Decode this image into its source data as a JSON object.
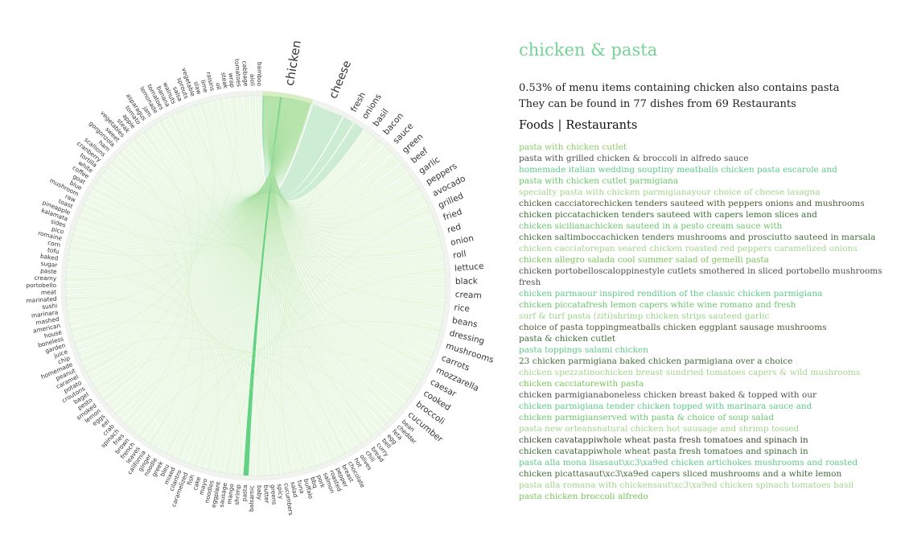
{
  "chart_data": {
    "type": "chord",
    "groups": [
      "chicken",
      "cheese",
      "fresh",
      "onions",
      "basil",
      "bacon",
      "sauce",
      "green",
      "beef",
      "garlic",
      "peppers",
      "avocado",
      "grilled",
      "fried",
      "red",
      "onion",
      "roll",
      "lettuce",
      "black",
      "cream",
      "rice",
      "beans",
      "dressing",
      "mushrooms",
      "carrots",
      "mozzarella",
      "caesar",
      "cooked",
      "broccoli",
      "cucumber",
      "bean",
      "cheddar",
      "feta",
      "egg",
      "bell",
      "curry",
      "bread",
      "chili",
      "olives",
      "hot",
      "chocolate",
      "breast",
      "pepper",
      "roasted",
      "salmon",
      "pork",
      "bbq",
      "buffalo",
      "tuna",
      "salad",
      "cucumbers",
      "spicy",
      "greens",
      "butter",
      "baby",
      "balsamic",
      "pasta",
      "shrimp",
      "mango",
      "sausage",
      "eggplant",
      "noodles",
      "mayo",
      "cake",
      "fish",
      "caramelized",
      "cilantro",
      "mixed",
      "bleu",
      "greek",
      "noodle",
      "ginger",
      "california",
      "leaves",
      "french",
      "brown",
      "fries",
      "spinach",
      "crab",
      "eel",
      "eggs",
      "lemon",
      "smoked",
      "pesto",
      "bagel",
      "croutons",
      "potato",
      "caramel",
      "peanut",
      "homemade",
      "chip",
      "juice",
      "garden",
      "boneless",
      "house",
      "american",
      "mashed",
      "marinara",
      "sushi",
      "marinated",
      "meat",
      "portobello",
      "creamy",
      "paste",
      "sugar",
      "baked",
      "tofu",
      "corn",
      "romaine",
      "pico",
      "sides",
      "kalamata",
      "pineapple",
      "toast",
      "raw",
      "mushroom",
      "blue",
      "goat",
      "coffee",
      "white",
      "tortilla",
      "cranberry",
      "scallions",
      "ham",
      "gorgonzola",
      "sweet",
      "vegetables",
      "steak",
      "apple",
      "tomato",
      "asparagus",
      "jam",
      "lemonade",
      "tomatoes",
      "banana",
      "walnuts",
      "salsa",
      "sprouts",
      "vegetable",
      "slaw",
      "lime",
      "raisins",
      "oil",
      "steak2",
      "wrap",
      "tomatoes2",
      "cabbage",
      "aioli",
      "bamboo"
    ],
    "selected_pair": [
      "chicken",
      "pasta"
    ]
  },
  "group_labels": [
    "chicken",
    "cheese",
    "fresh",
    "onions",
    "basil",
    "bacon",
    "sauce",
    "green",
    "beef",
    "garlic",
    "peppers",
    "avocado",
    "grilled",
    "fried",
    "red",
    "onion",
    "roll",
    "lettuce",
    "black",
    "cream",
    "rice",
    "beans",
    "dressing",
    "mushrooms",
    "carrots",
    "mozzarella",
    "caesar",
    "cooked",
    "broccoli",
    "cucumber",
    "bean",
    "cheddar",
    "feta",
    "egg",
    "bell",
    "curry",
    "bread",
    "chili",
    "olives",
    "hot",
    "chocolate",
    "breast",
    "pepper",
    "roasted",
    "salmon",
    "pork",
    "bbq",
    "buffalo",
    "tuna",
    "salad",
    "cucumbers",
    "spicy",
    "greens",
    "butter",
    "baby",
    "balsamic",
    "pasta",
    "shrimp",
    "mango",
    "sausage",
    "eggplant",
    "noodles",
    "mayo",
    "cake",
    "fish",
    "caramelized",
    "cilantro",
    "mixed",
    "bleu",
    "greek",
    "noodle",
    "ginger",
    "california",
    "leaves",
    "french",
    "brown",
    "fries",
    "spinach",
    "crab",
    "eel",
    "eggs",
    "lemon",
    "smoked",
    "pesto",
    "bagel",
    "croutons",
    "potato",
    "caramel",
    "peanut",
    "homemade",
    "chip",
    "juice",
    "garden",
    "boneless",
    "house",
    "american",
    "mashed",
    "marinara",
    "sushi",
    "marinated",
    "meat",
    "portobello",
    "creamy",
    "paste",
    "sugar",
    "baked",
    "tofu",
    "corn",
    "romaine",
    "pico",
    "sides",
    "kalamata",
    "pineapple",
    "toast",
    "raw",
    "mushroom",
    "blue",
    "goat",
    "coffee",
    "white",
    "tortilla",
    "cranberry",
    "scallions",
    "ham",
    "gorgonzola",
    "sweet",
    "vegetables",
    "steak",
    "apple",
    "tomato",
    "asparagus",
    "jam",
    "lemonade",
    "tomatoes",
    "banana",
    "walnuts",
    "salsa",
    "sprouts",
    "vegetable",
    "slaw",
    "lime",
    "raisins",
    "oil",
    "steak",
    "wrap",
    "tomatoes",
    "cabbage",
    "aioli",
    "bamboo"
  ],
  "colors": {
    "accent": "#73d494",
    "chord": "#8fd8a0",
    "chord_pale": "#c6e8a8",
    "highlight": "#52cd75",
    "text_dark": "#222222",
    "list_shades": [
      "#8cc96a",
      "#4f4f4f",
      "#5fc98a",
      "#7cc35d",
      "#9dd18a",
      "#4a5a3a",
      "#3f6b3a"
    ]
  },
  "panel": {
    "title": "chicken & pasta",
    "stat_line_1": "0.53% of menu items containing chicken also contains pasta",
    "stat_line_2": "They can be found in 77 dishes from 69 Restaurants",
    "tab_foods": "Foods",
    "tab_separator": "|",
    "tab_restaurants": "Restaurants"
  },
  "dishes": [
    {
      "name": "pasta with chicken cutlet",
      "color": "#8cc96a"
    },
    {
      "name": "pasta with grilled chicken & broccoli in alfredo sauce",
      "color": "#4f4f4f"
    },
    {
      "name": "homemade italian wedding souptiny meatballs chicken pasta escarole and",
      "color": "#5fc98a"
    },
    {
      "name": "pasta with chicken cutlet parmigiana",
      "color": "#6cc56e"
    },
    {
      "name": "specialty pasta with chicken parmigianayour choice of cheese lasagna",
      "color": "#a5d38f"
    },
    {
      "name": "chicken cacciatorechicken tenders sauteed with peppers onions and mushrooms",
      "color": "#4a5a3a"
    },
    {
      "name": "chicken piccatachicken tenders sauteed with capers lemon slices and",
      "color": "#3f6b3a"
    },
    {
      "name": "chicken sicilianachicken sauteed in a pesto cream sauce with",
      "color": "#6cc56e"
    },
    {
      "name": "chicken saltimboccachicken tenders mushrooms and prosciutto sauteed in marsala",
      "color": "#456b3e"
    },
    {
      "name": "chicken cacciatorepan seared chicken roasted red peppers caramelized onions",
      "color": "#a5d38f"
    },
    {
      "name": "chicken allegro salada cool summer salad of gemelli pasta",
      "color": "#7cc35d"
    },
    {
      "name": "chicken portobelloscaloppinestyle cutlets smothered in sliced portobello mushrooms",
      "color": "#4f4f4f"
    },
    {
      "name": "fresh",
      "color": "#4f4f4f"
    },
    {
      "name": "chicken parmaour inspired rendition of the classic chicken parmigiana",
      "color": "#5fc98a"
    },
    {
      "name": "chicken piccatafresh lemon capers white wine romano and fresh",
      "color": "#6cc56e"
    },
    {
      "name": "surf & turf pasta (ziti)shrimp chicken strips sauteed garlic",
      "color": "#9dd18a"
    },
    {
      "name": "choice of pasta toppingmeatballs chicken eggplant sausage mushrooms",
      "color": "#4a5a3a"
    },
    {
      "name": "pasta & chicken cutlet",
      "color": "#3f6b3a"
    },
    {
      "name": "pasta toppings salami chicken",
      "color": "#5fc98a"
    },
    {
      "name": "23 chicken parmigiana baked chicken parmigiana over a choice",
      "color": "#456b3e"
    },
    {
      "name": "chicken spezzatinochicken breast sundried tomatoes capers & wild mushrooms",
      "color": "#a5d38f"
    },
    {
      "name": "chicken cacciatorewith pasta",
      "color": "#7cc35d"
    },
    {
      "name": "chicken parmigianaboneless chicken breast baked & topped with our",
      "color": "#4f4f4f"
    },
    {
      "name": "chicken parmigiana tender chicken topped with marinara sauce and",
      "color": "#5fc98a"
    },
    {
      "name": "chicken parmigianserved with pasta & choice of soup salad",
      "color": "#6cc56e"
    },
    {
      "name": "pasta new orleansnatural chicken hot sausage and shrimp tossed",
      "color": "#a5d38f"
    },
    {
      "name": "chicken cavatappiwhole wheat pasta fresh tomatoes and spinach in",
      "color": "#3a4a2e"
    },
    {
      "name": "chicken cavatappiwhole wheat pasta fresh tomatoes and spinach in",
      "color": "#3f6b3a"
    },
    {
      "name": "pasta alla mona lisasaut\\xc3\\xa9ed chicken artichokes mushrooms and roasted",
      "color": "#5fc98a"
    },
    {
      "name": "chicken picattasaut\\xc3\\xa9ed capers sliced mushrooms and a white lemon",
      "color": "#456b3e"
    },
    {
      "name": "pasta alla romana with chickensaut\\xc3\\xa9ed chicken spinach tomatoes basil",
      "color": "#a5d38f"
    },
    {
      "name": "pasta chicken broccoli alfredo",
      "color": "#7cc35d"
    }
  ]
}
